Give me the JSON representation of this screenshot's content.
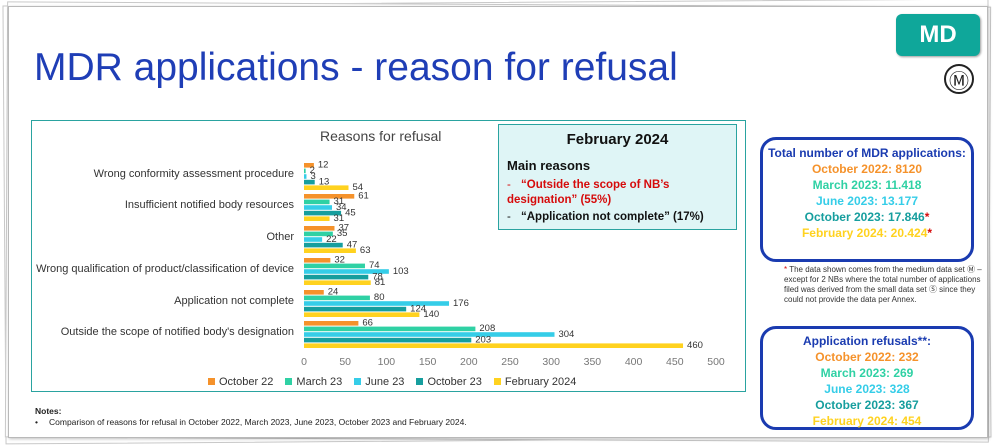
{
  "title": "MDR applications - reason for refusal",
  "badge": "MD",
  "m_symbol": "Ⓜ",
  "chart_data": {
    "type": "bar",
    "orientation": "horizontal",
    "title": "Reasons for refusal",
    "categories": [
      "Wrong conformity assessment procedure",
      "Insufficient notified body resources",
      "Other",
      "Wrong qualification of product/classification of device",
      "Application not complete",
      "Outside the scope of notified body's designation"
    ],
    "series": [
      {
        "name": "October 22",
        "color": "#f5922b",
        "values": [
          12,
          61,
          37,
          32,
          24,
          66
        ]
      },
      {
        "name": "March 23",
        "color": "#2fd1a4",
        "values": [
          2,
          31,
          35,
          74,
          80,
          208
        ]
      },
      {
        "name": "June 23",
        "color": "#35cde8",
        "values": [
          3,
          34,
          22,
          103,
          176,
          304
        ]
      },
      {
        "name": "October 23",
        "color": "#169e9e",
        "values": [
          13,
          45,
          47,
          78,
          124,
          203
        ]
      },
      {
        "name": "February 2024",
        "color": "#ffd21f",
        "values": [
          54,
          31,
          63,
          81,
          140,
          460
        ]
      }
    ],
    "xlim": [
      0,
      500
    ],
    "xticks": [
      "0",
      "50",
      "100",
      "150",
      "200",
      "250",
      "300",
      "350",
      "400",
      "450",
      "500"
    ],
    "legend_position": "bottom",
    "grid": false
  },
  "feb_box": {
    "heading": "February 2024",
    "subheading": "Main reasons",
    "dash": "-",
    "reason1": "“Outside the scope of NB’s designation” (55%)",
    "reason2": "“Application not complete” (17%)"
  },
  "totals": {
    "heading": "Total number of MDR applications:",
    "lines": [
      {
        "text": "October 2022: 8120",
        "color": "#f5922b"
      },
      {
        "text": "March 2023: 11.418",
        "color": "#2fd1a4"
      },
      {
        "text": "June 2023: 13.177",
        "color": "#35cde8"
      },
      {
        "text": "October 2023: 17.846",
        "color": "#169e9e"
      },
      {
        "text": "February 2024: 20.424",
        "color": "#ffd21f"
      }
    ],
    "star": "*"
  },
  "footnote": {
    "star": "*",
    "text": "The data shown comes from the medium data set Ⓜ – except for 2 NBs where the total number of applications filed was derived from the small data set Ⓢ since they could not provide the data per Annex."
  },
  "refusals": {
    "heading": "Application refusals**:",
    "lines": [
      {
        "text": "October 2022: 232",
        "color": "#f5922b"
      },
      {
        "text": "March 2023: 269",
        "color": "#2fd1a4"
      },
      {
        "text": "June 2023: 328",
        "color": "#35cde8"
      },
      {
        "text": "October 2023: 367",
        "color": "#169e9e"
      },
      {
        "text": "February 2024: 454",
        "color": "#ffd21f"
      }
    ]
  },
  "notes": {
    "heading": "Notes:",
    "bullet": "•",
    "text": "Comparison of reasons for refusal in October 2022, March 2023, June 2023, October 2023 and February 2024."
  }
}
